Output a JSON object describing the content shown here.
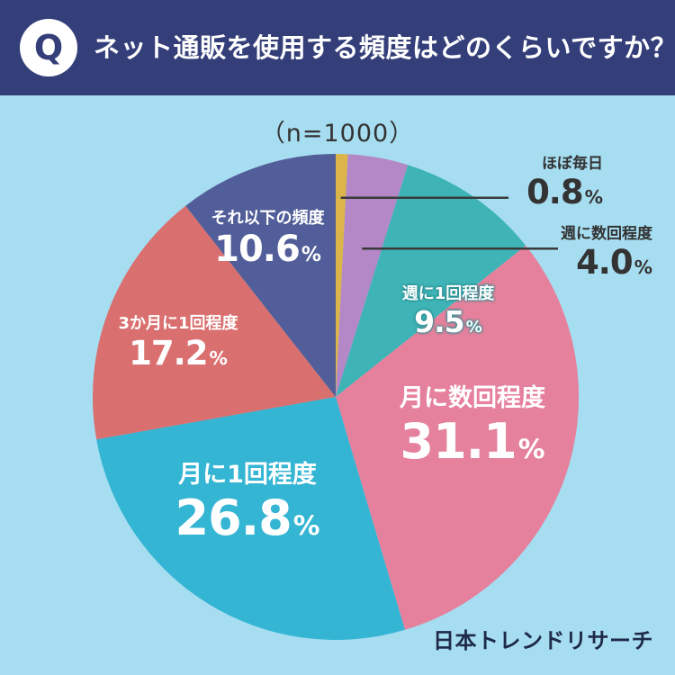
{
  "header": {
    "badge": "Q",
    "question": "ネット通販を使用する頻度はどのくらいですか？"
  },
  "sample": "（n=1000）",
  "brand": "日本トレンドリサーチ",
  "colors": {
    "header_bg": "#343f7a",
    "background": "#a6ddf0",
    "slice_daily": "#dbb54a",
    "slice_weekly_several": "#b487c6",
    "slice_weekly_once": "#3fb4b6",
    "slice_monthly_several": "#e5819c",
    "slice_monthly_once": "#33b5d3",
    "slice_quarterly": "#d9706f",
    "slice_less": "#525e99"
  },
  "chart_data": {
    "type": "pie",
    "start": "12 o'clock",
    "direction": "clockwise",
    "categories": [
      "ほぼ毎日",
      "週に数回程度",
      "週に1回程度",
      "月に数回程度",
      "月に1回程度",
      "3か月に1回程度",
      "それ以下の頻度"
    ],
    "values": [
      0.8,
      4.0,
      9.5,
      31.1,
      26.8,
      17.2,
      10.6
    ],
    "value_labels": [
      "0.8",
      "4.0",
      "9.5",
      "31.1",
      "26.8",
      "17.2",
      "10.6"
    ],
    "unit": "%",
    "label_position": [
      "outside",
      "outside",
      "inside",
      "inside",
      "inside",
      "inside",
      "inside"
    ]
  }
}
